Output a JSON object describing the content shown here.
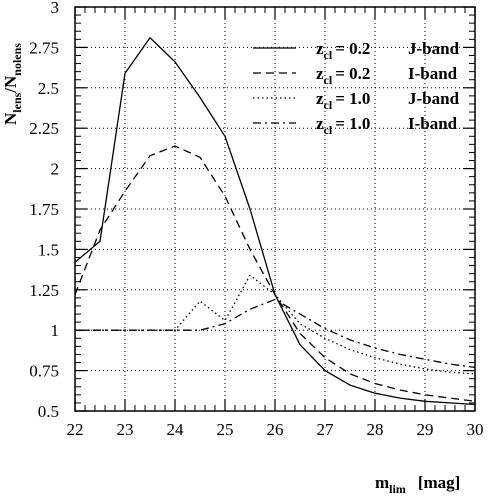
{
  "chart_data": {
    "type": "line",
    "xlabel": {
      "main": "m",
      "sub": "lim",
      "unit": "[mag]"
    },
    "ylabel": {
      "main1": "N",
      "sub1": "lens",
      "slash": "/N",
      "sub2": "nolens"
    },
    "xlim": [
      22,
      30
    ],
    "ylim": [
      0.5,
      3
    ],
    "grid": true,
    "legend_position": "top-right",
    "x_ticks": [
      22,
      23,
      24,
      25,
      26,
      27,
      28,
      29,
      30
    ],
    "x_tick_labels": [
      "22",
      "23",
      "24",
      "25",
      "26",
      "27",
      "28",
      "29",
      "30"
    ],
    "y_ticks": [
      0.5,
      0.75,
      1,
      1.25,
      1.5,
      1.75,
      2,
      2.25,
      2.5,
      2.75,
      3
    ],
    "y_tick_labels": [
      "0.5",
      "0.75",
      "1",
      "1.25",
      "1.5",
      "1.75",
      "2",
      "2.25",
      "2.5",
      "2.75",
      "3"
    ],
    "series": [
      {
        "legend_z": "z",
        "legend_sub": "cl",
        "legend_val": "= 0.2",
        "legend_band": "J-band",
        "dash": "solid",
        "x": [
          22,
          22.5,
          23,
          23.5,
          24,
          24.5,
          25,
          25.5,
          26,
          26.5,
          27,
          27.5,
          28,
          28.5,
          29,
          29.5,
          30
        ],
        "y": [
          1.42,
          1.55,
          2.59,
          2.81,
          2.66,
          2.44,
          2.2,
          1.75,
          1.22,
          0.91,
          0.75,
          0.66,
          0.61,
          0.58,
          0.56,
          0.55,
          0.54
        ]
      },
      {
        "legend_z": "z",
        "legend_sub": "cl",
        "legend_val": "= 0.2",
        "legend_band": "I-band",
        "dash": "dashed",
        "x": [
          22,
          22.5,
          23,
          23.5,
          24,
          24.5,
          25,
          25.5,
          26,
          26.5,
          27,
          27.5,
          28,
          28.5,
          29,
          29.5,
          30
        ],
        "y": [
          1.22,
          1.62,
          1.86,
          2.08,
          2.14,
          2.07,
          1.83,
          1.5,
          1.22,
          0.98,
          0.83,
          0.73,
          0.67,
          0.63,
          0.6,
          0.58,
          0.56
        ]
      },
      {
        "legend_z": "z",
        "legend_sub": "cl",
        "legend_val": "= 1.0",
        "legend_band": "J-band",
        "dash": "dotted",
        "x": [
          22,
          22.5,
          23,
          23.5,
          24,
          24.5,
          25,
          25.5,
          26,
          26.5,
          27,
          27.5,
          28,
          28.5,
          29,
          29.5,
          30
        ],
        "y": [
          1,
          1,
          1,
          1,
          1,
          1.18,
          1.06,
          1.34,
          1.22,
          1.04,
          0.95,
          0.88,
          0.83,
          0.79,
          0.76,
          0.74,
          0.73
        ]
      },
      {
        "legend_z": "z",
        "legend_sub": "cl",
        "legend_val": "= 1.0",
        "legend_band": "I-band",
        "dash": "dashdot",
        "x": [
          22,
          22.5,
          23,
          23.5,
          24,
          24.5,
          25,
          25.5,
          26,
          26.5,
          27,
          27.5,
          28,
          28.5,
          29,
          29.5,
          30
        ],
        "y": [
          1,
          1,
          1,
          1,
          1,
          1,
          1.04,
          1.13,
          1.19,
          1.1,
          1.01,
          0.94,
          0.89,
          0.85,
          0.82,
          0.79,
          0.77
        ]
      }
    ]
  }
}
